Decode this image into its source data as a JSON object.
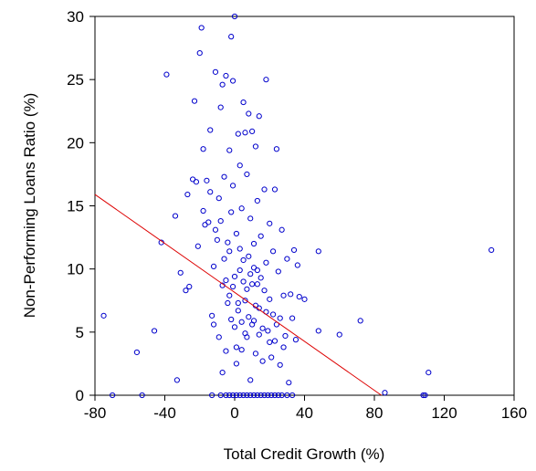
{
  "chart_data": {
    "type": "scatter",
    "title": "",
    "xlabel": "Total Credit Growth (%)",
    "ylabel": "Non-Performing Loans Ratio (%)",
    "xlim": [
      -80,
      160
    ],
    "ylim": [
      0,
      30
    ],
    "x_ticks": [
      -80,
      -40,
      0,
      40,
      80,
      120,
      160
    ],
    "y_ticks": [
      0,
      5,
      10,
      15,
      20,
      25,
      30
    ],
    "grid": false,
    "colors": {
      "points": "#0000cc",
      "fit_line": "#dd0000",
      "axes": "#000000"
    },
    "fit_line": {
      "x": [
        -80,
        84
      ],
      "y": [
        15.9,
        0
      ]
    },
    "series": [
      {
        "marker": "open-circle",
        "points": [
          [
            -75,
            6.3
          ],
          [
            -70,
            0
          ],
          [
            -53,
            0
          ],
          [
            -56,
            3.4
          ],
          [
            -46,
            5.1
          ],
          [
            -42,
            12.1
          ],
          [
            -39,
            25.4
          ],
          [
            -34,
            14.2
          ],
          [
            -33,
            1.2
          ],
          [
            -31,
            9.7
          ],
          [
            -28,
            8.3
          ],
          [
            -27,
            15.9
          ],
          [
            -26,
            8.6
          ],
          [
            -24,
            17.1
          ],
          [
            -23,
            23.3
          ],
          [
            -22,
            16.9
          ],
          [
            -21,
            11.8
          ],
          [
            -20,
            27.1
          ],
          [
            -19,
            29.1
          ],
          [
            -18,
            14.6
          ],
          [
            -18,
            19.5
          ],
          [
            -17,
            13.5
          ],
          [
            -16,
            17.0
          ],
          [
            -15,
            13.7
          ],
          [
            -14,
            16.1
          ],
          [
            -14,
            21.0
          ],
          [
            -13,
            0
          ],
          [
            -13,
            6.3
          ],
          [
            -12,
            5.6
          ],
          [
            -12,
            10.2
          ],
          [
            -11,
            25.6
          ],
          [
            -11,
            13.1
          ],
          [
            -10,
            12.3
          ],
          [
            -9,
            15.6
          ],
          [
            -9,
            4.6
          ],
          [
            -8,
            13.8
          ],
          [
            -8,
            22.8
          ],
          [
            -7,
            1.8
          ],
          [
            -7,
            24.6
          ],
          [
            -7,
            8.7
          ],
          [
            -6,
            10.8
          ],
          [
            -6,
            17.3
          ],
          [
            -5,
            25.3
          ],
          [
            -5,
            3.5
          ],
          [
            -5,
            9.1
          ],
          [
            -4,
            12.1
          ],
          [
            -4,
            7.3
          ],
          [
            -3,
            19.4
          ],
          [
            -3,
            11.4
          ],
          [
            -2,
            6.0
          ],
          [
            -2,
            14.5
          ],
          [
            -2,
            28.4
          ],
          [
            -1,
            24.9
          ],
          [
            -1,
            16.6
          ],
          [
            0,
            30.0
          ],
          [
            0,
            9.4
          ],
          [
            0,
            5.4
          ],
          [
            1,
            12.8
          ],
          [
            1,
            2.5
          ],
          [
            2,
            20.7
          ],
          [
            2,
            6.7
          ],
          [
            3,
            18.2
          ],
          [
            3,
            11.6
          ],
          [
            4,
            14.8
          ],
          [
            4,
            3.6
          ],
          [
            5,
            23.2
          ],
          [
            5,
            9.0
          ],
          [
            6,
            20.8
          ],
          [
            6,
            7.5
          ],
          [
            7,
            17.5
          ],
          [
            7,
            4.6
          ],
          [
            8,
            22.3
          ],
          [
            8,
            11.0
          ],
          [
            9,
            14.0
          ],
          [
            9,
            1.2
          ],
          [
            10,
            20.9
          ],
          [
            10,
            8.8
          ],
          [
            11,
            12.0
          ],
          [
            11,
            5.9
          ],
          [
            12,
            19.7
          ],
          [
            12,
            3.3
          ],
          [
            13,
            15.4
          ],
          [
            13,
            9.9
          ],
          [
            14,
            22.1
          ],
          [
            14,
            6.9
          ],
          [
            15,
            12.6
          ],
          [
            16,
            2.7
          ],
          [
            17,
            16.3
          ],
          [
            17,
            8.3
          ],
          [
            18,
            25.0
          ],
          [
            18,
            10.5
          ],
          [
            19,
            5.1
          ],
          [
            20,
            13.6
          ],
          [
            20,
            7.6
          ],
          [
            21,
            3.0
          ],
          [
            22,
            11.4
          ],
          [
            22,
            6.4
          ],
          [
            23,
            16.3
          ],
          [
            23,
            4.3
          ],
          [
            24,
            19.5
          ],
          [
            25,
            9.8
          ],
          [
            26,
            2.4
          ],
          [
            27,
            13.1
          ],
          [
            28,
            7.9
          ],
          [
            29,
            4.7
          ],
          [
            30,
            10.8
          ],
          [
            31,
            1.0
          ],
          [
            32,
            8.0
          ],
          [
            33,
            6.1
          ],
          [
            34,
            11.5
          ],
          [
            35,
            4.4
          ],
          [
            36,
            10.3
          ],
          [
            37,
            7.8
          ],
          [
            40,
            7.6
          ],
          [
            -8,
            0
          ],
          [
            -5,
            0
          ],
          [
            -3,
            0
          ],
          [
            -1,
            0
          ],
          [
            1,
            0
          ],
          [
            3,
            0
          ],
          [
            5,
            0
          ],
          [
            7,
            0
          ],
          [
            9,
            0
          ],
          [
            11,
            0
          ],
          [
            13,
            0
          ],
          [
            15,
            0
          ],
          [
            17,
            0
          ],
          [
            19,
            0
          ],
          [
            21,
            0
          ],
          [
            23,
            0
          ],
          [
            25,
            0
          ],
          [
            27,
            0
          ],
          [
            30,
            0
          ],
          [
            33,
            0
          ],
          [
            1,
            3.8
          ],
          [
            4,
            5.8
          ],
          [
            6,
            4.9
          ],
          [
            8,
            6.2
          ],
          [
            10,
            5.6
          ],
          [
            12,
            7.1
          ],
          [
            14,
            4.8
          ],
          [
            16,
            5.3
          ],
          [
            18,
            6.6
          ],
          [
            20,
            4.2
          ],
          [
            3,
            9.9
          ],
          [
            5,
            10.7
          ],
          [
            7,
            8.4
          ],
          [
            9,
            9.6
          ],
          [
            11,
            10.1
          ],
          [
            13,
            8.8
          ],
          [
            15,
            9.3
          ],
          [
            -3,
            7.9
          ],
          [
            -1,
            8.6
          ],
          [
            2,
            7.3
          ],
          [
            24,
            5.6
          ],
          [
            26,
            6.1
          ],
          [
            28,
            3.8
          ],
          [
            48,
            11.4
          ],
          [
            48,
            5.1
          ],
          [
            60,
            4.8
          ],
          [
            72,
            5.9
          ],
          [
            86,
            0.2
          ],
          [
            108,
            0
          ],
          [
            109,
            0
          ],
          [
            111,
            1.8
          ],
          [
            147,
            11.5
          ]
        ]
      }
    ]
  }
}
